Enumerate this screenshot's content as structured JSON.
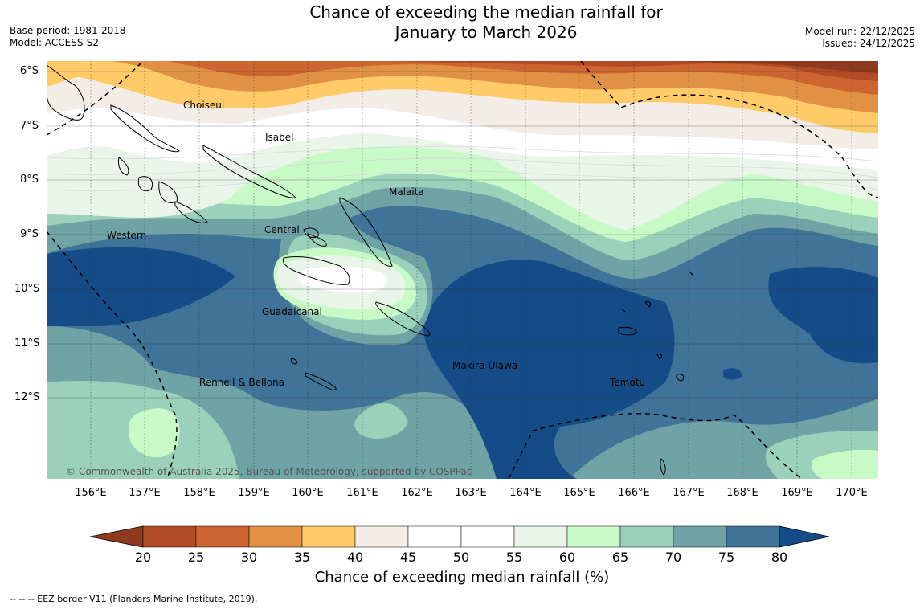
{
  "header": {
    "title_line1": "Chance of exceeding the median rainfall for",
    "title_line2": "January to March 2026",
    "base_period": "Base period: 1981-2018",
    "model": "Model: ACCESS-S2",
    "model_run": "Model run: 22/12/2025",
    "issued": "Issued: 24/12/2025"
  },
  "map": {
    "lat_labels": [
      "6°S",
      "7°S",
      "8°S",
      "9°S",
      "10°S",
      "11°S",
      "12°S"
    ],
    "lon_labels": [
      "156°E",
      "157°E",
      "158°E",
      "159°E",
      "160°E",
      "161°E",
      "162°E",
      "163°E",
      "164°E",
      "165°E",
      "166°E",
      "167°E",
      "168°E",
      "169°E",
      "170°E"
    ],
    "regions": {
      "choiseul": "Choiseul",
      "isabel": "Isabel",
      "malaita": "Malaita",
      "western": "Western",
      "central": "Central",
      "guadalcanal": "Guadalcanal",
      "makira_ulawa": "Makira-Ulawa",
      "temotu": "Temotu",
      "rennell_bellona": "Rennell & Bellona"
    },
    "copyright": "© Commonwealth of Australia 2025, Bureau of Meteorology, supported by COSPPac"
  },
  "legend": {
    "ticks": [
      "20",
      "25",
      "30",
      "35",
      "40",
      "45",
      "50",
      "55",
      "60",
      "65",
      "70",
      "75",
      "80"
    ],
    "colors": [
      "#8e3a1e",
      "#b24a26",
      "#cc6530",
      "#e09144",
      "#fecb68",
      "#f2ede6",
      "#ffffff",
      "#ffffff",
      "#e9f5e8",
      "#c8fac8",
      "#9bd1bb",
      "#6fa3a6",
      "#3f7397",
      "#154c87"
    ],
    "label": "Chance of exceeding median rainfall (%)",
    "footnote": "--  --  -- EEZ border V11 (Flanders Marine Institute, 2019)."
  }
}
